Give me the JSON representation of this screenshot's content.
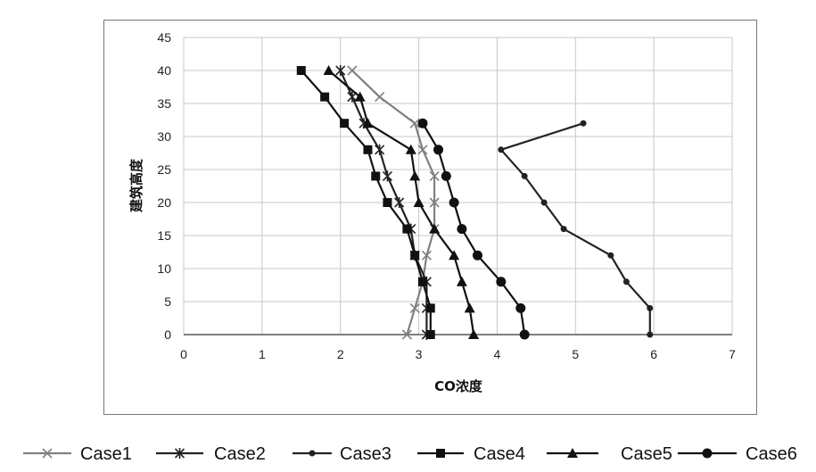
{
  "chart_data": {
    "type": "line",
    "xlabel": "CO浓度",
    "ylabel": "建筑高度",
    "xlim": [
      0,
      7
    ],
    "ylim": [
      0,
      45
    ],
    "xticks": [
      0,
      1,
      2,
      3,
      4,
      5,
      6,
      7
    ],
    "yticks": [
      0,
      5,
      10,
      15,
      20,
      25,
      30,
      35,
      40,
      45
    ],
    "grid": true,
    "legend_position": "bottom",
    "series": [
      {
        "name": "Case1",
        "marker": "x",
        "color": "#808080",
        "points": [
          [
            2.85,
            0
          ],
          [
            2.95,
            4
          ],
          [
            3.05,
            8
          ],
          [
            3.1,
            12
          ],
          [
            3.2,
            16
          ],
          [
            3.2,
            20
          ],
          [
            3.2,
            24
          ],
          [
            3.05,
            28
          ],
          [
            2.95,
            32
          ],
          [
            2.5,
            36
          ],
          [
            2.15,
            40
          ]
        ]
      },
      {
        "name": "Case2",
        "marker": "star",
        "color": "#222222",
        "points": [
          [
            3.1,
            0
          ],
          [
            3.1,
            4
          ],
          [
            3.1,
            8
          ],
          [
            2.95,
            12
          ],
          [
            2.9,
            16
          ],
          [
            2.75,
            20
          ],
          [
            2.6,
            24
          ],
          [
            2.5,
            28
          ],
          [
            2.3,
            32
          ],
          [
            2.15,
            36
          ],
          [
            2.0,
            40
          ]
        ]
      },
      {
        "name": "Case3",
        "marker": "dot",
        "color": "#222222",
        "points": [
          [
            5.95,
            0
          ],
          [
            5.95,
            4
          ],
          [
            5.65,
            8
          ],
          [
            5.45,
            12
          ],
          [
            4.85,
            16
          ],
          [
            4.6,
            20
          ],
          [
            4.35,
            24
          ],
          [
            4.05,
            28
          ],
          [
            5.1,
            32
          ]
        ]
      },
      {
        "name": "Case4",
        "marker": "square",
        "color": "#111111",
        "points": [
          [
            3.15,
            0
          ],
          [
            3.15,
            4
          ],
          [
            3.05,
            8
          ],
          [
            2.95,
            12
          ],
          [
            2.85,
            16
          ],
          [
            2.6,
            20
          ],
          [
            2.45,
            24
          ],
          [
            2.35,
            28
          ],
          [
            2.05,
            32
          ],
          [
            1.8,
            36
          ],
          [
            1.5,
            40
          ]
        ]
      },
      {
        "name": "Case5",
        "marker": "triangle",
        "color": "#111111",
        "points": [
          [
            3.7,
            0
          ],
          [
            3.65,
            4
          ],
          [
            3.55,
            8
          ],
          [
            3.45,
            12
          ],
          [
            3.2,
            16
          ],
          [
            3.0,
            20
          ],
          [
            2.95,
            24
          ],
          [
            2.9,
            28
          ],
          [
            2.35,
            32
          ],
          [
            2.25,
            36
          ],
          [
            1.85,
            40
          ]
        ]
      },
      {
        "name": "Case6",
        "marker": "circle",
        "color": "#111111",
        "points": [
          [
            4.35,
            0
          ],
          [
            4.3,
            4
          ],
          [
            4.05,
            8
          ],
          [
            3.75,
            12
          ],
          [
            3.55,
            16
          ],
          [
            3.45,
            20
          ],
          [
            3.35,
            24
          ],
          [
            3.25,
            28
          ],
          [
            3.05,
            32
          ]
        ]
      }
    ]
  }
}
